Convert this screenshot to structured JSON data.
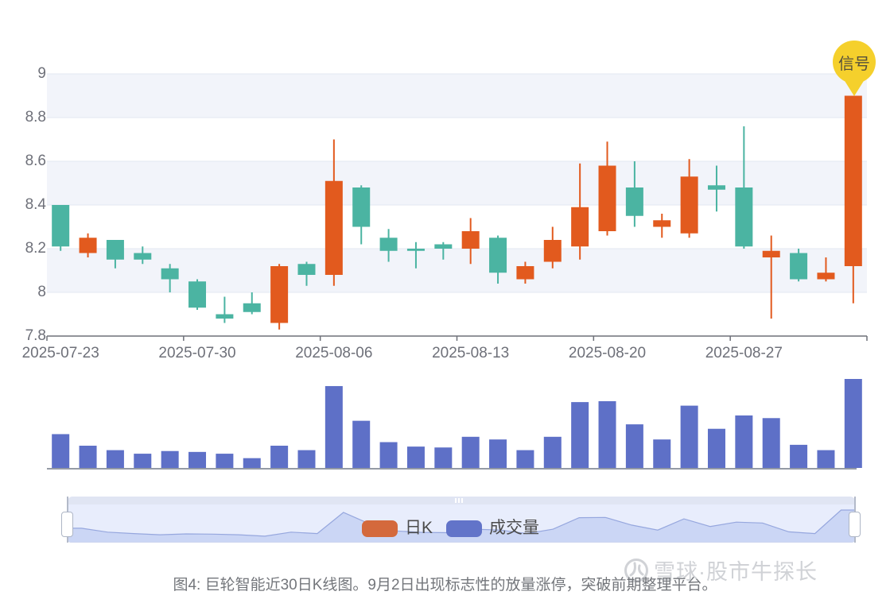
{
  "chart_data": {
    "type": "candlestick+volume",
    "stock_name": "巨轮智能",
    "ylim": [
      7.8,
      9.0
    ],
    "y_ticks": [
      "9",
      "8.8",
      "8.6",
      "8.4",
      "8.2",
      "8",
      "7.8"
    ],
    "x_tick_labels": [
      "2025-07-23",
      "2025-07-30",
      "2025-08-06",
      "2025-08-13",
      "2025-08-20",
      "2025-08-27"
    ],
    "grid": "horizontal gridlines with alternating split-area bands",
    "legend_position": "bottom-center over slider",
    "kline_order": "open,high,low,close",
    "dates": [
      "2025-07-23",
      "2025-07-24",
      "2025-07-25",
      "2025-07-28",
      "2025-07-29",
      "2025-07-30",
      "2025-07-31",
      "2025-08-01",
      "2025-08-04",
      "2025-08-05",
      "2025-08-06",
      "2025-08-07",
      "2025-08-08",
      "2025-08-11",
      "2025-08-12",
      "2025-08-13",
      "2025-08-14",
      "2025-08-15",
      "2025-08-18",
      "2025-08-19",
      "2025-08-20",
      "2025-08-21",
      "2025-08-22",
      "2025-08-25",
      "2025-08-26",
      "2025-08-27",
      "2025-08-28",
      "2025-08-29",
      "2025-09-01",
      "2025-09-02"
    ],
    "kline": [
      [
        8.4,
        8.4,
        8.19,
        8.21
      ],
      [
        8.18,
        8.27,
        8.16,
        8.25
      ],
      [
        8.24,
        8.24,
        8.11,
        8.15
      ],
      [
        8.18,
        8.21,
        8.13,
        8.15
      ],
      [
        8.11,
        8.13,
        8.0,
        8.06
      ],
      [
        8.05,
        8.06,
        7.92,
        7.93
      ],
      [
        7.9,
        7.98,
        7.86,
        7.88
      ],
      [
        7.95,
        8.0,
        7.9,
        7.91
      ],
      [
        7.86,
        8.13,
        7.83,
        8.12
      ],
      [
        8.13,
        8.14,
        8.03,
        8.08
      ],
      [
        8.08,
        8.7,
        8.03,
        8.51
      ],
      [
        8.48,
        8.49,
        8.22,
        8.3
      ],
      [
        8.25,
        8.29,
        8.14,
        8.19
      ],
      [
        8.2,
        8.23,
        8.11,
        8.19
      ],
      [
        8.22,
        8.23,
        8.15,
        8.2
      ],
      [
        8.2,
        8.34,
        8.13,
        8.28
      ],
      [
        8.25,
        8.26,
        8.04,
        8.09
      ],
      [
        8.06,
        8.14,
        8.04,
        8.12
      ],
      [
        8.14,
        8.3,
        8.11,
        8.24
      ],
      [
        8.21,
        8.59,
        8.15,
        8.39
      ],
      [
        8.28,
        8.69,
        8.26,
        8.58
      ],
      [
        8.48,
        8.6,
        8.3,
        8.35
      ],
      [
        8.3,
        8.36,
        8.25,
        8.33
      ],
      [
        8.27,
        8.61,
        8.25,
        8.53
      ],
      [
        8.49,
        8.58,
        8.37,
        8.47
      ],
      [
        8.48,
        8.76,
        8.2,
        8.21
      ],
      [
        8.16,
        8.26,
        7.88,
        8.19
      ],
      [
        8.18,
        8.2,
        8.05,
        8.06
      ],
      [
        8.06,
        8.16,
        8.05,
        8.09
      ],
      [
        8.12,
        8.9,
        7.95,
        8.9
      ]
    ],
    "volumes_relative": [
      38,
      25,
      20,
      16,
      19,
      18,
      16,
      11,
      25,
      20,
      92,
      53,
      29,
      24,
      23,
      35,
      32,
      20,
      35,
      74,
      75,
      49,
      32,
      70,
      44,
      59,
      56,
      26,
      20,
      100
    ],
    "signal": {
      "label": "信号",
      "date": "2025-09-02",
      "color": "#f5d02c"
    },
    "legend": [
      {
        "label": "日K",
        "color": "#d4693c"
      },
      {
        "label": "成交量",
        "color": "#6274c9"
      }
    ],
    "colors": {
      "up": "#e25a1e",
      "down": "#4bb4a2",
      "volume": "#5e70c7",
      "axis": "#6e7079",
      "gridline": "#e3e7f1",
      "split_band": "#f2f4fa",
      "volume_baseline": "#949aa5",
      "slider_area_fill": "#cbd6f5",
      "slider_line": "#96a7de"
    }
  },
  "caption": {
    "text": "图4: 巨轮智能近30日K线图。9月2日出现标志性的放量涨停，突破前期整理平台。"
  },
  "watermark": {
    "text": "雪球·股市牛探长"
  }
}
